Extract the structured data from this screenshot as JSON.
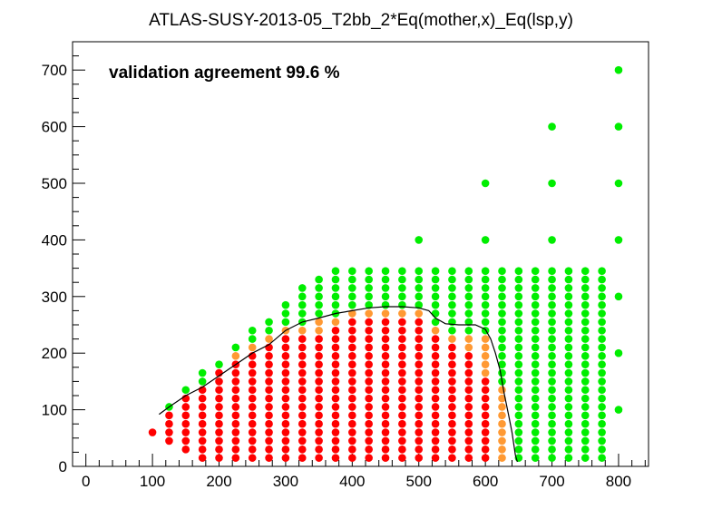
{
  "chart_data": {
    "type": "scatter",
    "title": "ATLAS-SUSY-2013-05_T2bb_2*Eq(mother,x)_Eq(lsp,y)",
    "annotation": "validation agreement 99.6 %",
    "xlabel": "",
    "ylabel": "",
    "xlim": [
      -20,
      845
    ],
    "ylim": [
      0,
      750
    ],
    "xticks": [
      0,
      100,
      200,
      300,
      400,
      500,
      600,
      700,
      800
    ],
    "yticks": [
      0,
      100,
      200,
      300,
      400,
      500,
      600,
      700
    ],
    "grid": false,
    "colors": {
      "green": "#00ee00",
      "orange": "#ff9933",
      "red": "#ff0000",
      "curve": "#000000"
    },
    "grid_x": [
      125,
      150,
      175,
      200,
      225,
      250,
      275,
      300,
      325,
      350,
      375,
      400,
      425,
      450,
      475,
      500,
      525,
      550,
      575,
      600,
      625,
      650,
      675,
      700,
      725,
      750,
      775
    ],
    "y_step": 15,
    "columns": [
      {
        "x": 100,
        "y0": 60,
        "red_below": 60,
        "orange_below": 60,
        "top": 60
      },
      {
        "x": 125,
        "y0": 45,
        "red_below": 95,
        "orange_below": 95,
        "top": 105
      },
      {
        "x": 150,
        "y0": 30,
        "red_below": 125,
        "orange_below": 125,
        "top": 135
      },
      {
        "x": 175,
        "y0": 15,
        "red_below": 145,
        "orange_below": 145,
        "top": 165
      },
      {
        "x": 200,
        "y0": 15,
        "red_below": 165,
        "orange_below": 165,
        "top": 180
      },
      {
        "x": 225,
        "y0": 15,
        "red_below": 180,
        "orange_below": 195,
        "top": 210
      },
      {
        "x": 250,
        "y0": 15,
        "red_below": 200,
        "orange_below": 215,
        "top": 240
      },
      {
        "x": 275,
        "y0": 15,
        "red_below": 210,
        "orange_below": 225,
        "top": 255
      },
      {
        "x": 300,
        "y0": 15,
        "red_below": 230,
        "orange_below": 245,
        "top": 285
      },
      {
        "x": 325,
        "y0": 15,
        "red_below": 230,
        "orange_below": 250,
        "top": 315
      },
      {
        "x": 350,
        "y0": 15,
        "red_below": 235,
        "orange_below": 265,
        "top": 330
      },
      {
        "x": 375,
        "y0": 15,
        "red_below": 250,
        "orange_below": 265,
        "top": 345
      },
      {
        "x": 400,
        "y0": 15,
        "red_below": 260,
        "orange_below": 275,
        "top": 345
      },
      {
        "x": 425,
        "y0": 15,
        "red_below": 260,
        "orange_below": 275,
        "top": 345
      },
      {
        "x": 450,
        "y0": 15,
        "red_below": 260,
        "orange_below": 280,
        "top": 345
      },
      {
        "x": 475,
        "y0": 15,
        "red_below": 260,
        "orange_below": 280,
        "top": 345
      },
      {
        "x": 500,
        "y0": 15,
        "red_below": 255,
        "orange_below": 270,
        "top": 345
      },
      {
        "x": 525,
        "y0": 15,
        "red_below": 230,
        "orange_below": 250,
        "top": 345
      },
      {
        "x": 550,
        "y0": 15,
        "red_below": 210,
        "orange_below": 235,
        "top": 345
      },
      {
        "x": 575,
        "y0": 15,
        "red_below": 200,
        "orange_below": 235,
        "top": 345
      },
      {
        "x": 600,
        "y0": 15,
        "red_below": 150,
        "orange_below": 235,
        "top": 345
      },
      {
        "x": 625,
        "y0": 15,
        "red_below": 0,
        "orange_below": 140,
        "top": 345
      },
      {
        "x": 650,
        "y0": 15,
        "red_below": 0,
        "orange_below": 0,
        "top": 345
      },
      {
        "x": 675,
        "y0": 15,
        "red_below": 0,
        "orange_below": 0,
        "top": 345
      },
      {
        "x": 700,
        "y0": 15,
        "red_below": 0,
        "orange_below": 0,
        "top": 345
      },
      {
        "x": 725,
        "y0": 15,
        "red_below": 0,
        "orange_below": 0,
        "top": 345
      },
      {
        "x": 750,
        "y0": 15,
        "red_below": 0,
        "orange_below": 0,
        "top": 345
      },
      {
        "x": 775,
        "y0": 15,
        "red_below": 0,
        "orange_below": 0,
        "top": 345
      }
    ],
    "extra_points": [
      {
        "x": 500,
        "y": 400,
        "status": "green"
      },
      {
        "x": 600,
        "y": 400,
        "status": "green"
      },
      {
        "x": 600,
        "y": 500,
        "status": "green"
      },
      {
        "x": 700,
        "y": 400,
        "status": "green"
      },
      {
        "x": 700,
        "y": 500,
        "status": "green"
      },
      {
        "x": 700,
        "y": 600,
        "status": "green"
      },
      {
        "x": 800,
        "y": 100,
        "status": "green"
      },
      {
        "x": 800,
        "y": 200,
        "status": "green"
      },
      {
        "x": 800,
        "y": 300,
        "status": "green"
      },
      {
        "x": 800,
        "y": 400,
        "status": "green"
      },
      {
        "x": 800,
        "y": 500,
        "status": "green"
      },
      {
        "x": 800,
        "y": 600,
        "status": "green"
      },
      {
        "x": 800,
        "y": 700,
        "status": "green"
      }
    ],
    "exclusion_curve": [
      [
        110,
        92
      ],
      [
        125,
        105
      ],
      [
        150,
        125
      ],
      [
        175,
        140
      ],
      [
        200,
        160
      ],
      [
        225,
        180
      ],
      [
        250,
        200
      ],
      [
        275,
        215
      ],
      [
        300,
        240
      ],
      [
        325,
        255
      ],
      [
        350,
        262
      ],
      [
        375,
        270
      ],
      [
        400,
        275
      ],
      [
        425,
        280
      ],
      [
        450,
        282
      ],
      [
        475,
        282
      ],
      [
        500,
        280
      ],
      [
        515,
        275
      ],
      [
        525,
        262
      ],
      [
        540,
        252
      ],
      [
        560,
        250
      ],
      [
        585,
        250
      ],
      [
        600,
        242
      ],
      [
        608,
        225
      ],
      [
        615,
        200
      ],
      [
        622,
        170
      ],
      [
        628,
        130
      ],
      [
        635,
        90
      ],
      [
        640,
        60
      ],
      [
        645,
        20
      ],
      [
        648,
        8
      ]
    ]
  }
}
